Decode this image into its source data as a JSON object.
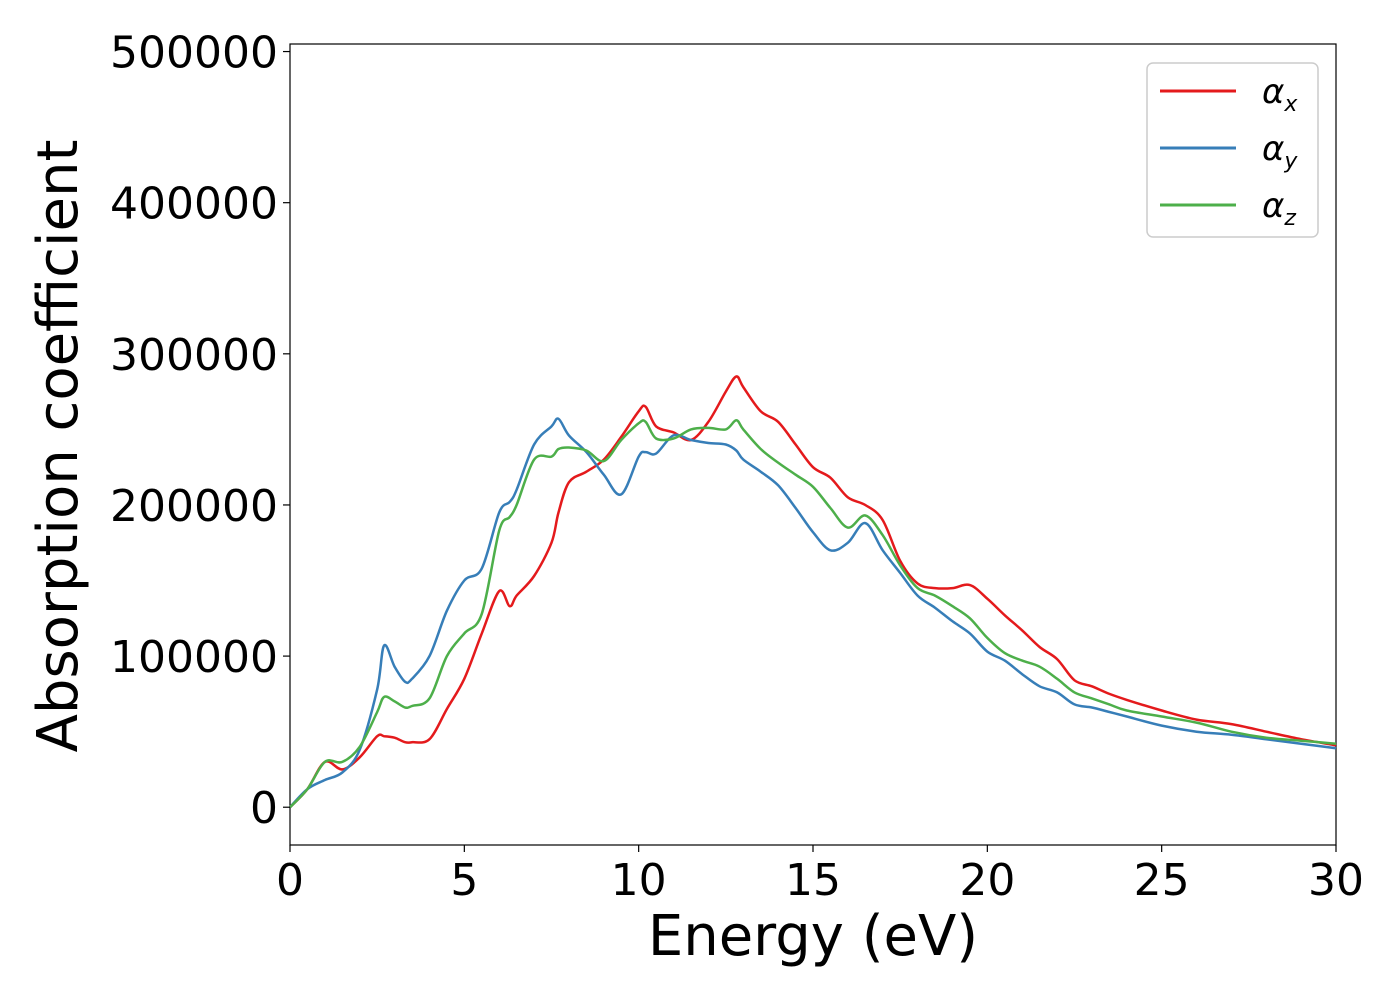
{
  "chart_data": {
    "type": "line",
    "title": "",
    "xlabel": "Energy (eV)",
    "ylabel": "Absorption coefficient",
    "xlim": [
      0,
      30
    ],
    "ylim": [
      -25000,
      505000
    ],
    "xticks": [
      "0",
      "5",
      "10",
      "15",
      "20",
      "25",
      "30"
    ],
    "yticks": [
      "0",
      "100000",
      "200000",
      "300000",
      "400000",
      "500000"
    ],
    "grid": false,
    "legend_position": "top-right",
    "x": [
      0,
      0.5,
      1,
      1.5,
      2,
      2.5,
      2.7,
      3,
      3.3,
      3.5,
      4,
      4.5,
      5,
      5.5,
      6,
      6.3,
      6.5,
      7,
      7.5,
      7.7,
      8,
      8.5,
      9,
      9.5,
      10,
      10.2,
      10.5,
      11,
      11.5,
      12,
      12.5,
      12.8,
      13,
      13.5,
      14,
      14.5,
      15,
      15.5,
      16,
      16.5,
      17,
      17.5,
      18,
      18.5,
      19,
      19.5,
      20,
      20.5,
      21,
      21.5,
      22,
      22.5,
      23,
      23.5,
      24,
      25,
      26,
      27,
      28,
      29,
      30
    ],
    "series": [
      {
        "name": "α",
        "subscript": "x",
        "color": "#e41a1c",
        "values": [
          0,
          12000,
          30000,
          25000,
          33000,
          47000,
          47000,
          46000,
          43000,
          43000,
          45000,
          65000,
          85000,
          115000,
          143000,
          133000,
          140000,
          153000,
          175000,
          195000,
          215000,
          222000,
          230000,
          245000,
          262000,
          265000,
          252000,
          248000,
          243000,
          255000,
          275000,
          285000,
          278000,
          262000,
          255000,
          240000,
          225000,
          218000,
          205000,
          200000,
          190000,
          163000,
          148000,
          145000,
          145000,
          147000,
          138000,
          127000,
          117000,
          106000,
          98000,
          84000,
          80000,
          75000,
          71000,
          64000,
          58000,
          55000,
          50000,
          45000,
          41000
        ]
      },
      {
        "name": "α",
        "subscript": "y",
        "color": "#377eb8",
        "values": [
          0,
          12000,
          18000,
          23000,
          38000,
          78000,
          107000,
          93000,
          83000,
          85000,
          100000,
          130000,
          150000,
          158000,
          195000,
          202000,
          210000,
          240000,
          252000,
          257000,
          246000,
          235000,
          220000,
          207000,
          232000,
          235000,
          234000,
          246000,
          243000,
          241000,
          240000,
          236000,
          230000,
          222000,
          213000,
          198000,
          182000,
          170000,
          175000,
          188000,
          170000,
          155000,
          140000,
          132000,
          123000,
          115000,
          103000,
          97000,
          88000,
          80000,
          76000,
          68000,
          66000,
          63000,
          60000,
          54000,
          50000,
          48000,
          45000,
          42000,
          39000
        ]
      },
      {
        "name": "α",
        "subscript": "z",
        "color": "#4daf4a",
        "values": [
          0,
          12000,
          30000,
          30000,
          40000,
          63000,
          73000,
          70000,
          66000,
          67000,
          72000,
          100000,
          115000,
          128000,
          183000,
          192000,
          200000,
          230000,
          232000,
          237000,
          238000,
          236000,
          229000,
          243000,
          254000,
          255000,
          244000,
          244000,
          250000,
          251000,
          250000,
          256000,
          250000,
          237000,
          228000,
          220000,
          212000,
          198000,
          185000,
          193000,
          180000,
          160000,
          145000,
          140000,
          133000,
          125000,
          112000,
          102000,
          97000,
          93000,
          85000,
          76000,
          72000,
          68000,
          64000,
          60000,
          56000,
          50000,
          46000,
          44000,
          42000
        ]
      }
    ]
  }
}
